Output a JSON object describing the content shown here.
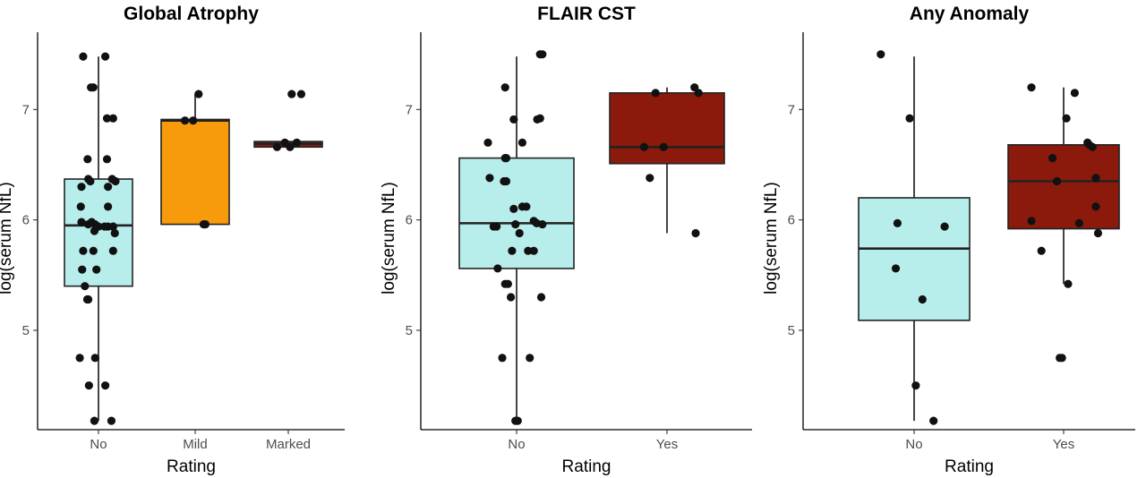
{
  "chart_data": [
    {
      "type": "box",
      "title": "Global Atrophy",
      "xlabel": "Rating",
      "ylabel": "log(serum NfL)",
      "ylim": [
        4.1,
        7.7
      ],
      "yticks": [
        5,
        6,
        7
      ],
      "categories": [
        "No",
        "Mild",
        "Marked"
      ],
      "colors": [
        "#b7eeec",
        "#f79a0c",
        "#8b1a0c"
      ],
      "boxes": [
        {
          "q1": 5.4,
          "median": 5.95,
          "q3": 6.37,
          "whisker_low": 4.18,
          "whisker_high": 7.48
        },
        {
          "q1": 5.96,
          "median": 6.9,
          "q3": 6.91,
          "whisker_low": 5.96,
          "whisker_high": 7.14
        },
        {
          "q1": 6.66,
          "median": 6.69,
          "q3": 6.71,
          "whisker_low": 6.66,
          "whisker_high": 6.71
        }
      ],
      "points": [
        {
          "cat": 0,
          "jitter": -0.45,
          "y": 7.48
        },
        {
          "cat": 0,
          "jitter": 0.2,
          "y": 7.48
        },
        {
          "cat": 0,
          "jitter": -0.22,
          "y": 7.2
        },
        {
          "cat": 0,
          "jitter": -0.15,
          "y": 7.2
        },
        {
          "cat": 0,
          "jitter": 0.25,
          "y": 6.92
        },
        {
          "cat": 0,
          "jitter": 0.43,
          "y": 6.92
        },
        {
          "cat": 0,
          "jitter": -0.32,
          "y": 6.55
        },
        {
          "cat": 0,
          "jitter": 0.25,
          "y": 6.55
        },
        {
          "cat": 0,
          "jitter": -0.3,
          "y": 6.37
        },
        {
          "cat": 0,
          "jitter": -0.24,
          "y": 6.35
        },
        {
          "cat": 0,
          "jitter": 0.4,
          "y": 6.37
        },
        {
          "cat": 0,
          "jitter": 0.5,
          "y": 6.35
        },
        {
          "cat": 0,
          "jitter": -0.5,
          "y": 6.3
        },
        {
          "cat": 0,
          "jitter": 0.28,
          "y": 6.3
        },
        {
          "cat": 0,
          "jitter": -0.52,
          "y": 6.12
        },
        {
          "cat": 0,
          "jitter": 0.28,
          "y": 6.12
        },
        {
          "cat": 0,
          "jitter": -0.5,
          "y": 5.98
        },
        {
          "cat": 0,
          "jitter": -0.3,
          "y": 5.96
        },
        {
          "cat": 0,
          "jitter": -0.2,
          "y": 5.98
        },
        {
          "cat": 0,
          "jitter": -0.1,
          "y": 5.96
        },
        {
          "cat": 0,
          "jitter": 0.0,
          "y": 5.94
        },
        {
          "cat": 0,
          "jitter": 0.18,
          "y": 5.94
        },
        {
          "cat": 0,
          "jitter": 0.28,
          "y": 5.94
        },
        {
          "cat": 0,
          "jitter": 0.43,
          "y": 5.94
        },
        {
          "cat": 0,
          "jitter": 0.48,
          "y": 5.88
        },
        {
          "cat": 0,
          "jitter": -0.12,
          "y": 5.9
        },
        {
          "cat": 0,
          "jitter": -0.45,
          "y": 5.72
        },
        {
          "cat": 0,
          "jitter": 0.43,
          "y": 5.72
        },
        {
          "cat": 0,
          "jitter": -0.15,
          "y": 5.72
        },
        {
          "cat": 0,
          "jitter": -0.48,
          "y": 5.55
        },
        {
          "cat": 0,
          "jitter": -0.06,
          "y": 5.55
        },
        {
          "cat": 0,
          "jitter": -0.4,
          "y": 5.4
        },
        {
          "cat": 0,
          "jitter": -0.33,
          "y": 5.28
        },
        {
          "cat": 0,
          "jitter": -0.3,
          "y": 5.28
        },
        {
          "cat": 0,
          "jitter": -0.55,
          "y": 4.75
        },
        {
          "cat": 0,
          "jitter": -0.1,
          "y": 4.75
        },
        {
          "cat": 0,
          "jitter": -0.28,
          "y": 4.5
        },
        {
          "cat": 0,
          "jitter": 0.2,
          "y": 4.5
        },
        {
          "cat": 0,
          "jitter": -0.12,
          "y": 4.18
        },
        {
          "cat": 0,
          "jitter": 0.38,
          "y": 4.18
        },
        {
          "cat": 1,
          "jitter": -0.3,
          "y": 6.9
        },
        {
          "cat": 1,
          "jitter": -0.06,
          "y": 6.9
        },
        {
          "cat": 1,
          "jitter": 0.1,
          "y": 7.14
        },
        {
          "cat": 1,
          "jitter": 0.25,
          "y": 5.96
        },
        {
          "cat": 1,
          "jitter": 0.3,
          "y": 5.96
        },
        {
          "cat": 2,
          "jitter": -0.33,
          "y": 6.66
        },
        {
          "cat": 2,
          "jitter": -0.1,
          "y": 6.7
        },
        {
          "cat": 2,
          "jitter": 0.05,
          "y": 6.66
        },
        {
          "cat": 2,
          "jitter": 0.25,
          "y": 6.7
        },
        {
          "cat": 2,
          "jitter": 0.1,
          "y": 7.14
        },
        {
          "cat": 2,
          "jitter": 0.38,
          "y": 7.14
        }
      ]
    },
    {
      "type": "box",
      "title": "FLAIR CST",
      "xlabel": "Rating",
      "ylabel": "log(serum NfL)",
      "ylim": [
        4.1,
        7.7
      ],
      "yticks": [
        5,
        6,
        7
      ],
      "categories": [
        "No",
        "Yes"
      ],
      "colors": [
        "#b7eeec",
        "#8b1a0c"
      ],
      "boxes": [
        {
          "q1": 5.56,
          "median": 5.97,
          "q3": 6.56,
          "whisker_low": 4.18,
          "whisker_high": 7.48
        },
        {
          "q1": 6.51,
          "median": 6.66,
          "q3": 7.15,
          "whisker_low": 5.88,
          "whisker_high": 7.2
        }
      ],
      "points": [
        {
          "cat": 0,
          "jitter": 0.41,
          "y": 7.5
        },
        {
          "cat": 0,
          "jitter": 0.45,
          "y": 7.5
        },
        {
          "cat": 0,
          "jitter": -0.2,
          "y": 7.2
        },
        {
          "cat": 0,
          "jitter": -0.05,
          "y": 6.91
        },
        {
          "cat": 0,
          "jitter": 0.36,
          "y": 6.91
        },
        {
          "cat": 0,
          "jitter": 0.41,
          "y": 6.92
        },
        {
          "cat": 0,
          "jitter": -0.5,
          "y": 6.7
        },
        {
          "cat": 0,
          "jitter": 0.1,
          "y": 6.7
        },
        {
          "cat": 0,
          "jitter": -0.2,
          "y": 6.56
        },
        {
          "cat": 0,
          "jitter": -0.18,
          "y": 6.56
        },
        {
          "cat": 0,
          "jitter": -0.47,
          "y": 6.38
        },
        {
          "cat": 0,
          "jitter": -0.22,
          "y": 6.35
        },
        {
          "cat": 0,
          "jitter": -0.18,
          "y": 6.35
        },
        {
          "cat": 0,
          "jitter": 0.1,
          "y": 6.12
        },
        {
          "cat": 0,
          "jitter": 0.17,
          "y": 6.12
        },
        {
          "cat": 0,
          "jitter": -0.05,
          "y": 6.1
        },
        {
          "cat": 0,
          "jitter": -0.4,
          "y": 5.94
        },
        {
          "cat": 0,
          "jitter": -0.35,
          "y": 5.94
        },
        {
          "cat": 0,
          "jitter": -0.02,
          "y": 5.96
        },
        {
          "cat": 0,
          "jitter": 0.3,
          "y": 5.99
        },
        {
          "cat": 0,
          "jitter": 0.35,
          "y": 5.97
        },
        {
          "cat": 0,
          "jitter": 0.45,
          "y": 5.96
        },
        {
          "cat": 0,
          "jitter": 0.05,
          "y": 5.88
        },
        {
          "cat": 0,
          "jitter": 0.2,
          "y": 5.72
        },
        {
          "cat": 0,
          "jitter": 0.3,
          "y": 5.72
        },
        {
          "cat": 0,
          "jitter": -0.08,
          "y": 5.72
        },
        {
          "cat": 0,
          "jitter": -0.33,
          "y": 5.56
        },
        {
          "cat": 0,
          "jitter": -0.2,
          "y": 5.42
        },
        {
          "cat": 0,
          "jitter": -0.15,
          "y": 5.42
        },
        {
          "cat": 0,
          "jitter": -0.1,
          "y": 5.3
        },
        {
          "cat": 0,
          "jitter": 0.43,
          "y": 5.3
        },
        {
          "cat": 0,
          "jitter": -0.25,
          "y": 4.75
        },
        {
          "cat": 0,
          "jitter": 0.23,
          "y": 4.75
        },
        {
          "cat": 0,
          "jitter": -0.02,
          "y": 4.18
        },
        {
          "cat": 0,
          "jitter": 0.02,
          "y": 4.18
        },
        {
          "cat": 1,
          "jitter": -0.2,
          "y": 7.15
        },
        {
          "cat": 1,
          "jitter": 0.48,
          "y": 7.2
        },
        {
          "cat": 1,
          "jitter": 0.55,
          "y": 7.15
        },
        {
          "cat": 1,
          "jitter": -0.4,
          "y": 6.66
        },
        {
          "cat": 1,
          "jitter": -0.06,
          "y": 6.66
        },
        {
          "cat": 1,
          "jitter": -0.3,
          "y": 6.38
        },
        {
          "cat": 1,
          "jitter": 0.5,
          "y": 5.88
        }
      ]
    },
    {
      "type": "box",
      "title": "Any Anomaly",
      "xlabel": "Rating",
      "ylabel": "log(serum NfL)",
      "ylim": [
        4.1,
        7.7
      ],
      "yticks": [
        5,
        6,
        7
      ],
      "categories": [
        "No",
        "Yes"
      ],
      "colors": [
        "#b7eeec",
        "#8b1a0c"
      ],
      "boxes": [
        {
          "q1": 5.09,
          "median": 5.74,
          "q3": 6.2,
          "whisker_low": 4.18,
          "whisker_high": 7.48
        },
        {
          "q1": 5.92,
          "median": 6.35,
          "q3": 6.68,
          "whisker_low": 5.42,
          "whisker_high": 7.2
        }
      ],
      "points": [
        {
          "cat": 0,
          "jitter": -0.6,
          "y": 7.5
        },
        {
          "cat": 0,
          "jitter": -0.08,
          "y": 6.92
        },
        {
          "cat": 0,
          "jitter": -0.3,
          "y": 5.97
        },
        {
          "cat": 0,
          "jitter": 0.55,
          "y": 5.94
        },
        {
          "cat": 0,
          "jitter": -0.33,
          "y": 5.56
        },
        {
          "cat": 0,
          "jitter": 0.15,
          "y": 5.28
        },
        {
          "cat": 0,
          "jitter": 0.03,
          "y": 4.5
        },
        {
          "cat": 0,
          "jitter": 0.35,
          "y": 4.18
        },
        {
          "cat": 1,
          "jitter": -0.58,
          "y": 7.2
        },
        {
          "cat": 1,
          "jitter": 0.2,
          "y": 7.15
        },
        {
          "cat": 1,
          "jitter": 0.05,
          "y": 6.92
        },
        {
          "cat": 1,
          "jitter": 0.43,
          "y": 6.7
        },
        {
          "cat": 1,
          "jitter": 0.46,
          "y": 6.68
        },
        {
          "cat": 1,
          "jitter": 0.52,
          "y": 6.66
        },
        {
          "cat": 1,
          "jitter": -0.2,
          "y": 6.56
        },
        {
          "cat": 1,
          "jitter": -0.12,
          "y": 6.35
        },
        {
          "cat": 1,
          "jitter": 0.58,
          "y": 6.38
        },
        {
          "cat": 1,
          "jitter": 0.58,
          "y": 6.12
        },
        {
          "cat": 1,
          "jitter": -0.58,
          "y": 5.99
        },
        {
          "cat": 1,
          "jitter": 0.28,
          "y": 5.97
        },
        {
          "cat": 1,
          "jitter": 0.62,
          "y": 5.88
        },
        {
          "cat": 1,
          "jitter": -0.4,
          "y": 5.72
        },
        {
          "cat": 1,
          "jitter": 0.08,
          "y": 5.42
        },
        {
          "cat": 1,
          "jitter": -0.07,
          "y": 4.75
        },
        {
          "cat": 1,
          "jitter": -0.03,
          "y": 4.75
        }
      ]
    }
  ]
}
